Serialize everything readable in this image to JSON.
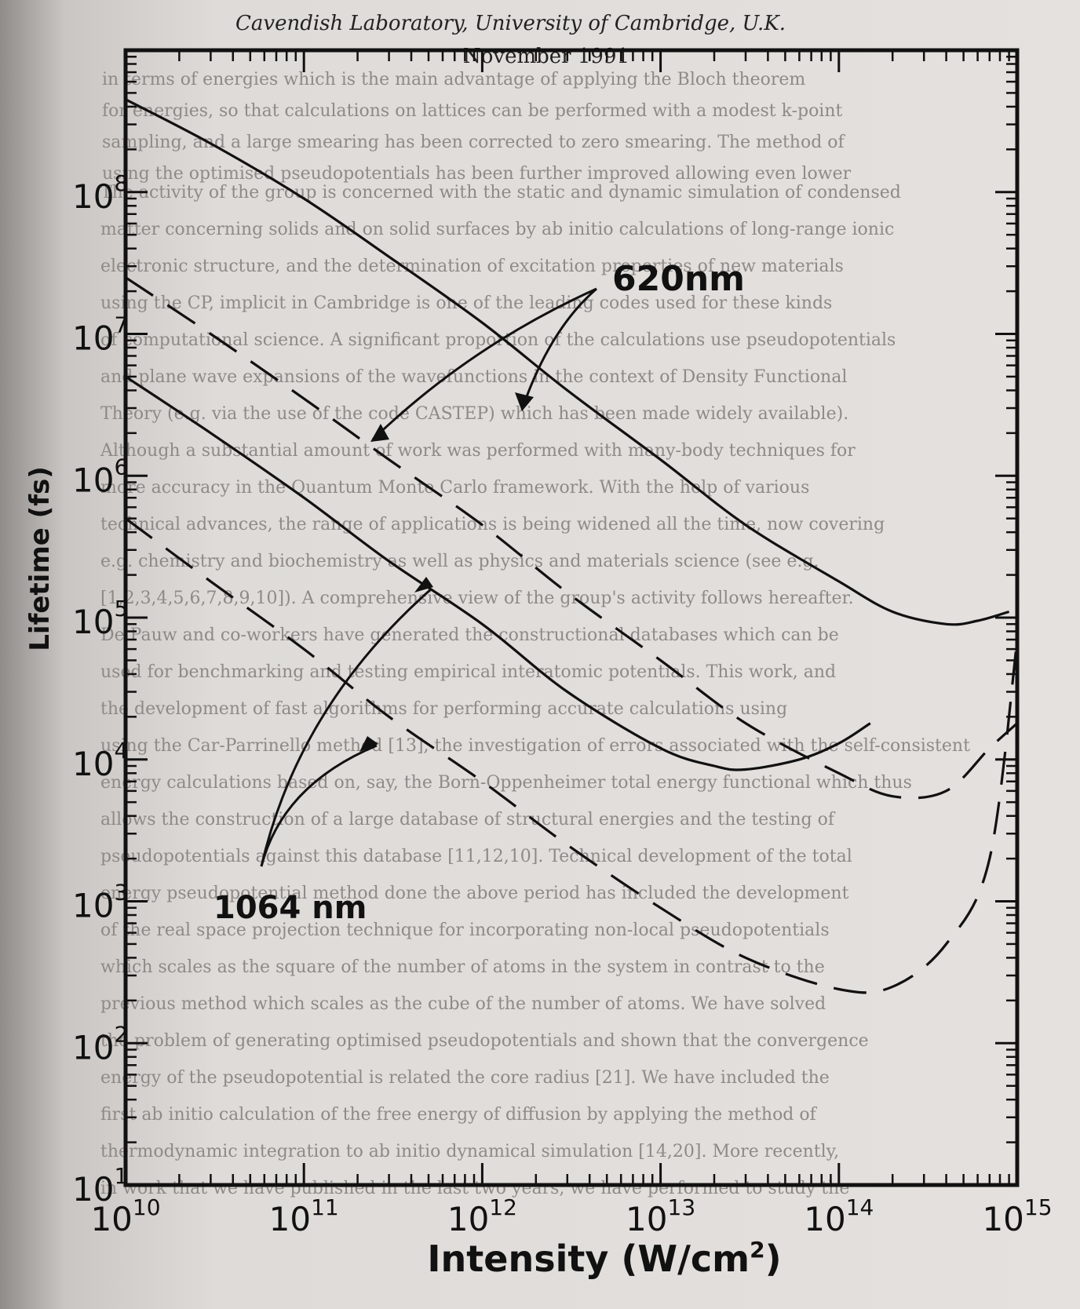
{
  "page": {
    "header_lines": [
      "Cavendish Laboratory, University of Cambridge, U.K.",
      "November 1991"
    ],
    "background_text_lines": [
      "The activity of the group is concerned with the static and dynamic simulation of condensed",
      "matter concerning solids and on solid surfaces by ab initio calculations of long-range ionic",
      "electronic structure, and the determination of excitation properties of new materials",
      "using the CP, implicit in Cambridge is one of the leading codes used for these kinds",
      "of computational science. A significant proportion of the calculations use pseudopotentials",
      "and plane wave expansions of the wavefunctions in the context of Density Functional",
      "Theory (e.g. via the use of the code CASTEP) which has been made widely available).",
      "Although a substantial amount of work was performed with many-body techniques for",
      "more accuracy in the Quantum Monte Carlo framework. With the help of various",
      "technical advances, the range of applications is being widened all the time, now covering",
      "e.g. chemistry and biochemistry as well as physics and materials science (see e.g.",
      "[1,2,3,4,5,6,7,8,9,10]). A comprehensive view of the group's activity follows hereafter.",
      "De Pauw and co-workers have generated the constructional databases which can be",
      "used for benchmarking and testing empirical interatomic potentials. This work, and",
      "the development of fast algorithms for performing accurate calculations using",
      "using the Car-Parrinello method [13], the investigation of errors associated with the self-consistent",
      "energy calculations based on, say, the Born-Oppenheimer total energy functional which thus",
      "allows the construction of a large database of structural energies and the testing of",
      "pseudopotentials against this database [11,12,10]. Technical development of the total",
      "energy pseudopotential method done the above period has included the development",
      "of the real space projection technique for incorporating non-local pseudopotentials",
      "which scales as the square of the number of atoms in the system in contrast to the",
      "previous method which scales as the cube of the number of atoms. We have solved",
      "the problem of generating optimised pseudopotentials and shown that the convergence",
      "energy of the pseudopotential is related the core radius [21]. We have included the",
      "first ab initio calculation of the free energy of diffusion by applying the method of",
      "thermodynamic integration to ab initio dynamical simulation [14,20]. More recently,",
      "in work that we have published in the last two years, we have performed to study the"
    ],
    "background_text_top_lines": [
      "in terms of energies which is the main advantage of applying the Bloch theorem",
      "for energies, so that calculations on lattices can be performed with a modest k-point",
      "sampling, and a large smearing has been corrected to zero smearing. The method of",
      "using the optimised pseudopotentials has been further improved allowing even lower"
    ]
  },
  "chart_data": {
    "type": "line",
    "title": "",
    "xlabel": "Intensity (W/cm²)",
    "xlabel_parts": {
      "main": "Intensity (W/cm",
      "superscript": "2",
      "close": ")"
    },
    "ylabel": "Lifetime (fs)",
    "x_scale": "log",
    "y_scale": "log",
    "xlim": [
      10000000000.0,
      1000000000000000.0
    ],
    "ylim": [
      10,
      1000000000.0
    ],
    "x_ticks": [
      {
        "base": "10",
        "exp": "10",
        "value": 10000000000.0
      },
      {
        "base": "10",
        "exp": "11",
        "value": 100000000000.0
      },
      {
        "base": "10",
        "exp": "12",
        "value": 1000000000000.0
      },
      {
        "base": "10",
        "exp": "13",
        "value": 10000000000000.0
      },
      {
        "base": "10",
        "exp": "14",
        "value": 100000000000000.0
      },
      {
        "base": "10",
        "exp": "15",
        "value": 1000000000000000.0
      }
    ],
    "y_ticks": [
      {
        "base": "10",
        "exp": "1",
        "value": 10
      },
      {
        "base": "10",
        "exp": "2",
        "value": 100
      },
      {
        "base": "10",
        "exp": "3",
        "value": 1000
      },
      {
        "base": "10",
        "exp": "4",
        "value": 10000
      },
      {
        "base": "10",
        "exp": "5",
        "value": 100000
      },
      {
        "base": "10",
        "exp": "6",
        "value": 1000000
      },
      {
        "base": "10",
        "exp": "7",
        "value": 10000000
      },
      {
        "base": "10",
        "exp": "8",
        "value": 100000000
      }
    ],
    "grid": false,
    "series": [
      {
        "group": "620nm",
        "style": "solid",
        "points": [
          [
            10000000000.0,
            450000000.0
          ],
          [
            30000000000.0,
            220000000.0
          ],
          [
            100000000000.0,
            90000000.0
          ],
          [
            300000000000.0,
            35000000.0
          ],
          [
            1000000000000.0,
            12000000.0
          ],
          [
            3000000000000.0,
            4000000.0
          ],
          [
            10000000000000.0,
            1300000.0
          ],
          [
            30000000000000.0,
            450000.0
          ],
          [
            100000000000000.0,
            180000.0
          ],
          [
            200000000000000.0,
            110000.0
          ],
          [
            400000000000000.0,
            90000.0
          ],
          [
            600000000000000.0,
            95000.0
          ],
          [
            900000000000000.0,
            110000.0
          ]
        ]
      },
      {
        "group": "620nm",
        "style": "dashed",
        "points": [
          [
            10000000000.0,
            25000000.0
          ],
          [
            30000000000.0,
            10000000.0
          ],
          [
            100000000000.0,
            3500000.0
          ],
          [
            300000000000.0,
            1300000.0
          ],
          [
            1000000000000.0,
            450000.0
          ],
          [
            3000000000000.0,
            150000.0
          ],
          [
            10000000000000.0,
            50000.0
          ],
          [
            30000000000000.0,
            18000.0
          ],
          [
            100000000000000.0,
            8000.0
          ],
          [
            200000000000000.0,
            5500.0
          ],
          [
            400000000000000.0,
            6000.0
          ],
          [
            700000000000000.0,
            12000.0
          ],
          [
            1000000000000000.0,
            18000.0
          ]
        ]
      },
      {
        "group": "1064nm",
        "style": "solid",
        "points": [
          [
            10000000000.0,
            5000000.0
          ],
          [
            30000000000.0,
            2000000.0
          ],
          [
            100000000000.0,
            700000.0
          ],
          [
            300000000000.0,
            250000.0
          ],
          [
            1000000000000.0,
            90000.0
          ],
          [
            3000000000000.0,
            30000.0
          ],
          [
            10000000000000.0,
            12000.0
          ],
          [
            20000000000000.0,
            9000.0
          ],
          [
            30000000000000.0,
            8500.0
          ],
          [
            60000000000000.0,
            10000.0
          ],
          [
            100000000000000.0,
            13000.0
          ],
          [
            150000000000000.0,
            18000.0
          ]
        ]
      },
      {
        "group": "1064nm",
        "style": "dashed",
        "points": [
          [
            10000000000.0,
            500000.0
          ],
          [
            30000000000.0,
            180000.0
          ],
          [
            100000000000.0,
            60000.0
          ],
          [
            300000000000.0,
            20000.0
          ],
          [
            1000000000000.0,
            7000.0
          ],
          [
            3000000000000.0,
            2500.0
          ],
          [
            10000000000000.0,
            900
          ],
          [
            30000000000000.0,
            400
          ],
          [
            100000000000000.0,
            240
          ],
          [
            200000000000000.0,
            250
          ],
          [
            400000000000000.0,
            500
          ],
          [
            700000000000000.0,
            2000.0
          ],
          [
            1000000000000000.0,
            70000.0
          ]
        ]
      }
    ],
    "annotations": [
      {
        "text": "620nm",
        "arrows_to": "620nm series"
      },
      {
        "text": "1064 nm",
        "arrows_to": "1064nm series"
      }
    ],
    "legend": "none"
  }
}
